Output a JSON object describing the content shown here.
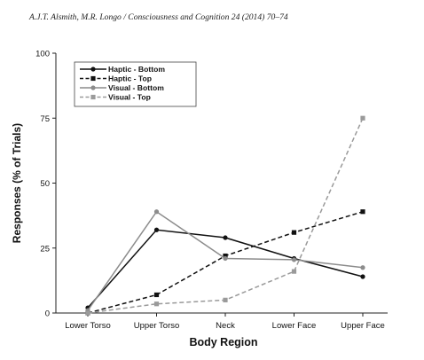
{
  "header": {
    "citation": "A.J.T. Alsmith, M.R. Longo / Consciousness and Cognition 24 (2014) 70–74"
  },
  "chart_data": {
    "type": "line",
    "title": "",
    "xlabel": "Body Region",
    "ylabel": "Responses (% of Trials)",
    "categories": [
      "Lower Torso",
      "Upper Torso",
      "Neck",
      "Lower Face",
      "Upper Face"
    ],
    "ylim": [
      0,
      100
    ],
    "yticks": [
      0,
      25,
      50,
      75,
      100
    ],
    "grid": false,
    "legend_position": "top-left",
    "series": [
      {
        "name": "Haptic - Bottom",
        "values": [
          2,
          32,
          29,
          21,
          14
        ],
        "color": "#111111",
        "dash": "solid",
        "marker": "circle"
      },
      {
        "name": "Haptic - Top",
        "values": [
          0,
          7,
          22,
          31,
          39
        ],
        "color": "#111111",
        "dash": "dashed",
        "marker": "square"
      },
      {
        "name": "Visual - Bottom",
        "values": [
          1,
          39,
          21,
          20.5,
          17.5
        ],
        "color": "#8c8c8c",
        "dash": "solid",
        "marker": "circle"
      },
      {
        "name": "Visual - Top",
        "values": [
          0,
          3.5,
          5,
          16,
          75
        ],
        "color": "#9a9a9a",
        "dash": "dashed",
        "marker": "square"
      }
    ]
  }
}
